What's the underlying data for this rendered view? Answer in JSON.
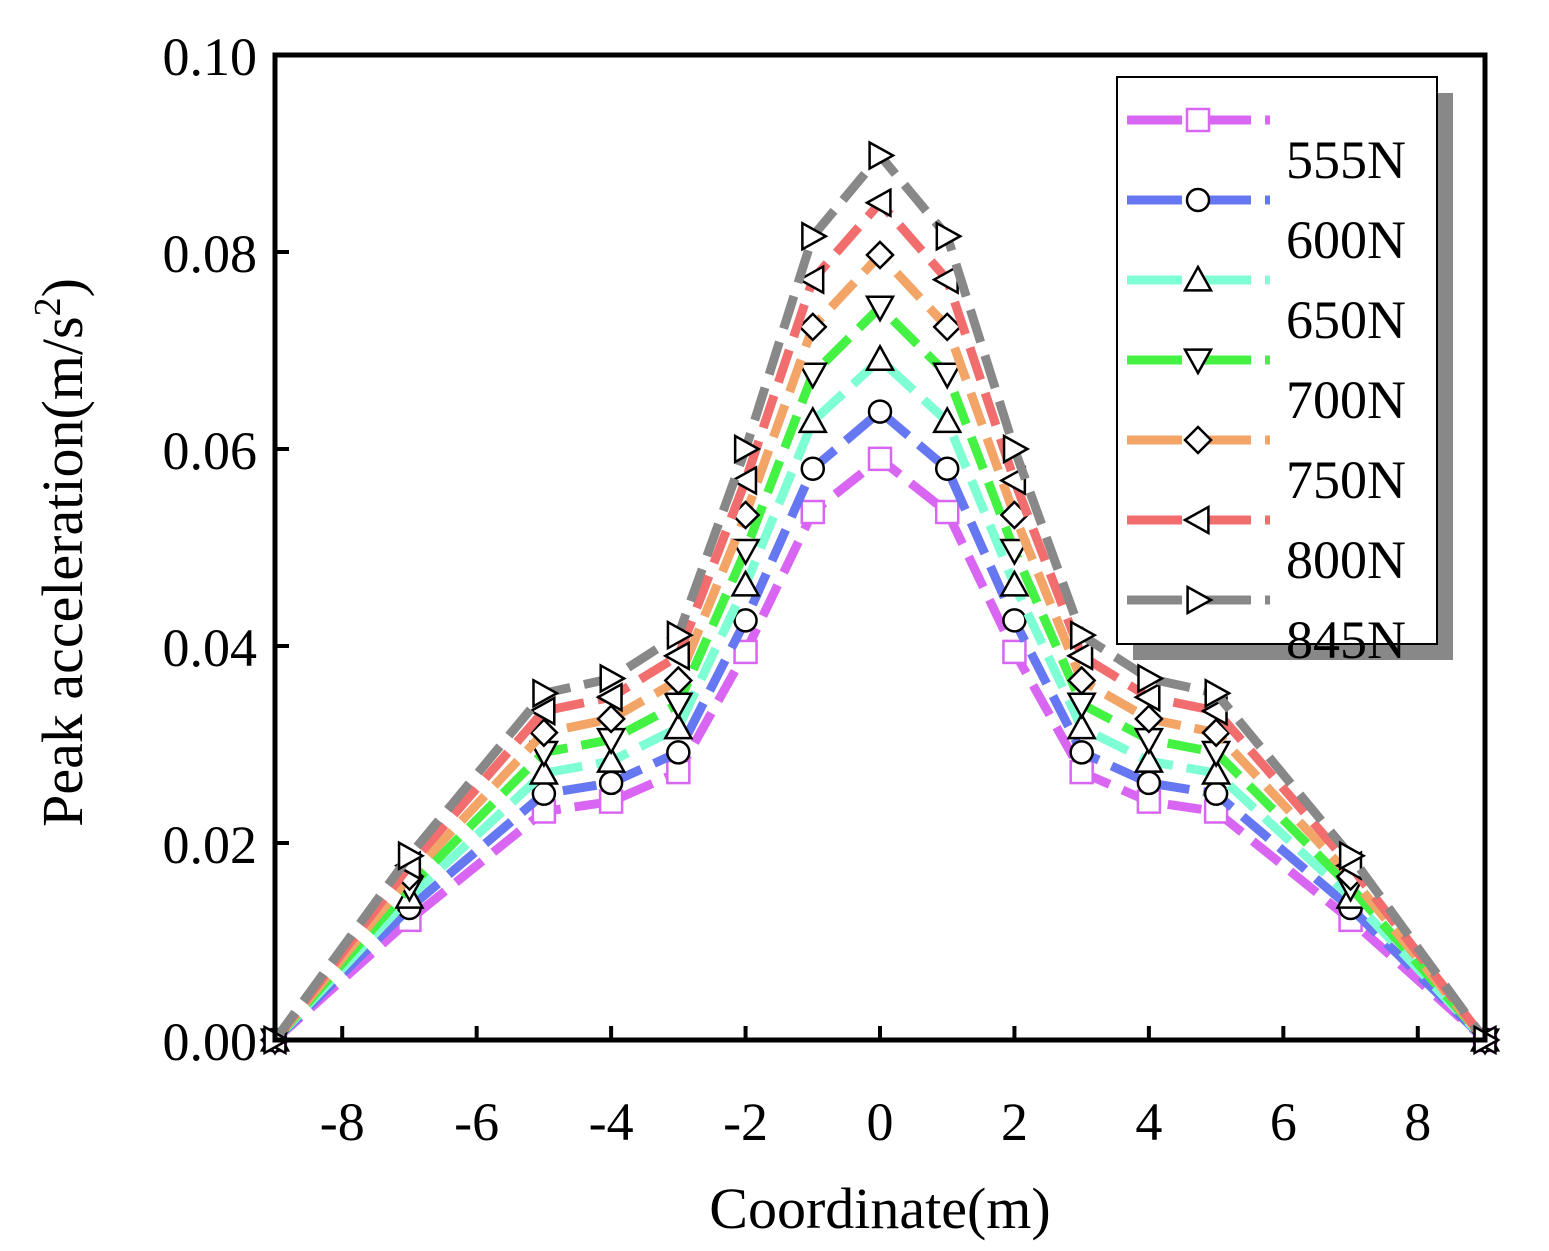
{
  "chart_data": {
    "type": "line",
    "title": "",
    "xlabel": "Coordinate(m)",
    "ylabel_main": "Peak acceleration(m/s",
    "ylabel_sup": "2",
    "ylabel_close": ")",
    "xlim": [
      -9,
      9
    ],
    "ylim": [
      0,
      0.1
    ],
    "xticks": [
      -8,
      -6,
      -4,
      -2,
      0,
      2,
      4,
      6,
      8
    ],
    "xtick_labels": [
      "-8",
      "-6",
      "-4",
      "-2",
      "0",
      "2",
      "4",
      "6",
      "8"
    ],
    "yticks": [
      0,
      0.02,
      0.04,
      0.06,
      0.08,
      0.1
    ],
    "ytick_labels": [
      "0.00",
      "0.02",
      "0.04",
      "0.06",
      "0.08",
      "0.10"
    ],
    "x": [
      -9,
      -7,
      -5,
      -4,
      -3,
      -2,
      -1,
      0,
      1,
      2,
      3,
      4,
      5,
      7,
      9
    ],
    "legend_position": "top-right",
    "grid": false,
    "series": [
      {
        "name": "555N",
        "color": "#d966f2",
        "marker": "square",
        "values": [
          0,
          0.0122,
          0.0232,
          0.0242,
          0.0272,
          0.0394,
          0.0536,
          0.059,
          0.0536,
          0.0394,
          0.0272,
          0.0242,
          0.0232,
          0.0122,
          0
        ]
      },
      {
        "name": "600N",
        "color": "#6677f2",
        "marker": "circle",
        "values": [
          0,
          0.0134,
          0.025,
          0.0261,
          0.0292,
          0.0426,
          0.058,
          0.0638,
          0.058,
          0.0426,
          0.0292,
          0.0261,
          0.025,
          0.0134,
          0
        ]
      },
      {
        "name": "650N",
        "color": "#7fffd4",
        "marker": "triangle-up",
        "values": [
          0,
          0.0145,
          0.0271,
          0.0283,
          0.0317,
          0.0462,
          0.0628,
          0.0691,
          0.0628,
          0.0462,
          0.0317,
          0.0283,
          0.0271,
          0.0145,
          0
        ]
      },
      {
        "name": "700N",
        "color": "#44f244",
        "marker": "triangle-down",
        "values": [
          0,
          0.0155,
          0.0292,
          0.0305,
          0.0341,
          0.0497,
          0.0676,
          0.0744,
          0.0676,
          0.0497,
          0.0341,
          0.0305,
          0.0292,
          0.0155,
          0
        ]
      },
      {
        "name": "750N",
        "color": "#f2a566",
        "marker": "diamond",
        "values": [
          0,
          0.0166,
          0.0312,
          0.0326,
          0.0365,
          0.0533,
          0.0724,
          0.0797,
          0.0724,
          0.0533,
          0.0365,
          0.0326,
          0.0312,
          0.0166,
          0
        ]
      },
      {
        "name": "800N",
        "color": "#f26e6e",
        "marker": "triangle-left",
        "values": [
          0,
          0.0177,
          0.0334,
          0.0348,
          0.039,
          0.0568,
          0.0772,
          0.085,
          0.0772,
          0.0568,
          0.039,
          0.0348,
          0.0334,
          0.0177,
          0
        ]
      },
      {
        "name": "845N",
        "color": "#888888",
        "marker": "triangle-right",
        "values": [
          0,
          0.0187,
          0.0352,
          0.0367,
          0.0411,
          0.06,
          0.0816,
          0.0898,
          0.0816,
          0.06,
          0.0411,
          0.0367,
          0.0352,
          0.0187,
          0
        ]
      }
    ]
  }
}
